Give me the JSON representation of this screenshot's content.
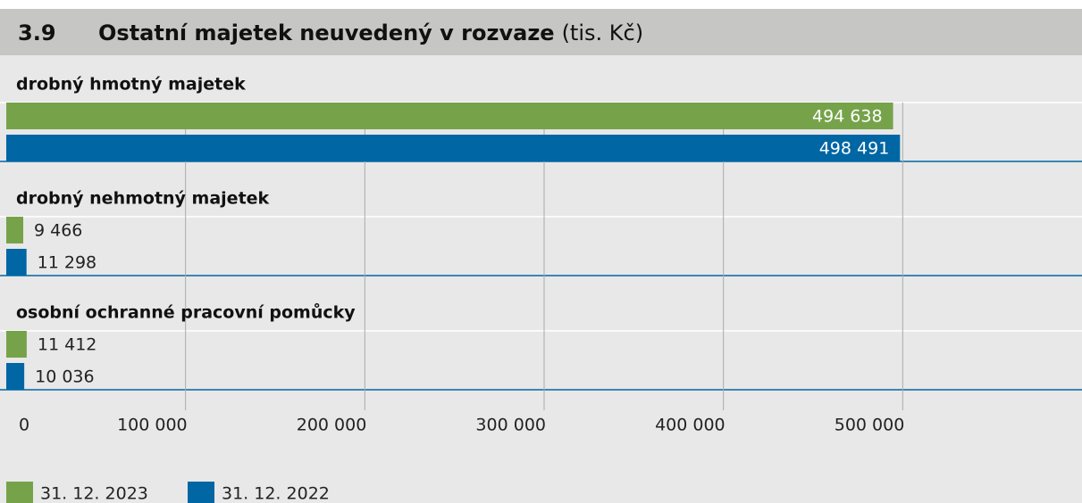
{
  "chart_data": {
    "type": "barh",
    "number": "3.9",
    "title": "Ostatní majetek neuvedený v rozvaze",
    "unit": "(tis. Kč)",
    "categories": [
      "drobný hmotný majetek",
      "drobný nehmotný majetek",
      "osobní ochranné pracovní pomůcky"
    ],
    "series": [
      {
        "name": "31. 12. 2023",
        "color": "#76a34a",
        "values": [
          494638,
          9466,
          11412
        ],
        "value_labels": [
          "494 638",
          "9 466",
          "11 412"
        ]
      },
      {
        "name": "31. 12. 2022",
        "color": "#0066a4",
        "values": [
          498491,
          11298,
          10036
        ],
        "value_labels": [
          "498 491",
          "11 298",
          "10 036"
        ]
      }
    ],
    "xlim": [
      0,
      600000
    ],
    "xticks": [
      0,
      {
        "value": 100000,
        "label": "100 000"
      },
      {
        "value": 200000,
        "label": "200 000"
      },
      {
        "value": 300000,
        "label": "300 000"
      },
      {
        "value": 400000,
        "label": "400 000"
      },
      {
        "value": 500000,
        "label": "500 000"
      }
    ],
    "grid": true,
    "legend": "bottom-left"
  }
}
